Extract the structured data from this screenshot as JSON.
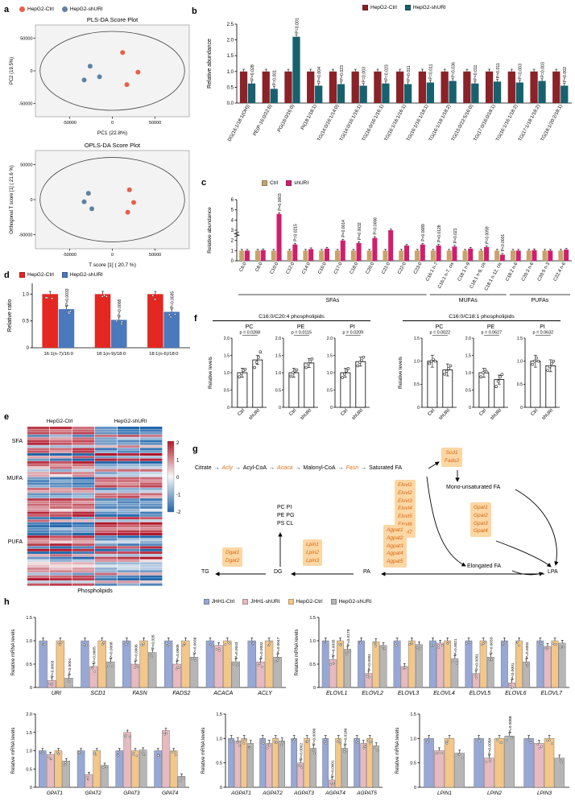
{
  "panels": {
    "a": "a",
    "b": "b",
    "c": "c",
    "d": "d",
    "e": "e",
    "f": "f",
    "g": "g",
    "h": "h"
  },
  "panel_a": {
    "legend": [
      {
        "label": "HepG2-Ctrl",
        "color": "#e8604c"
      },
      {
        "label": "HepG2-shURI",
        "color": "#5e82a0"
      }
    ],
    "plots": [
      {
        "title": "PLS-DA Score Plot",
        "xlabel": "PC1 (22.8%)",
        "ylabel": "PC2 (19.5%)",
        "xticks": [
          "-50000",
          "0",
          "50000"
        ],
        "yticks": [
          "50000",
          "0",
          "-50000"
        ],
        "xlim": [
          -90000,
          90000
        ],
        "ylim": [
          -70000,
          70000
        ],
        "ctrl": [
          [
            12000,
            28000
          ],
          [
            30000,
            -2000
          ],
          [
            17000,
            -21000
          ]
        ],
        "shuri": [
          [
            -26000,
            7000
          ],
          [
            -15000,
            -9000
          ],
          [
            -33000,
            -14000
          ]
        ]
      },
      {
        "title": "OPLS-DA Score Plot",
        "xlabel": "T score [1] ( 20.7 %)",
        "ylabel": "Orthogonal T score [1] ( 21.6 %)",
        "xticks": [
          "-50000",
          "0",
          "50000"
        ],
        "yticks": [
          "50000",
          "0",
          "-50000"
        ],
        "xlim": [
          -90000,
          90000
        ],
        "ylim": [
          -70000,
          70000
        ],
        "ctrl": [
          [
            20000,
            14000
          ],
          [
            25000,
            -4000
          ],
          [
            18000,
            -18000
          ]
        ],
        "shuri": [
          [
            -28000,
            9000
          ],
          [
            -33000,
            -3000
          ],
          [
            -24000,
            -13000
          ]
        ]
      }
    ]
  },
  "panel_b": {
    "legend": [
      {
        "label": "HepG2-Ctrl",
        "color": "#8a2227"
      },
      {
        "label": "HepG2-shURI",
        "color": "#17616e"
      }
    ],
    "ylabel": "Relative abundance",
    "ylim": 2.5,
    "yticks": [
      "0.0",
      "0.5",
      "1.0",
      "1.5",
      "2.0",
      "2.5"
    ],
    "categories": [
      "DG(16:1/18:1(OH))",
      "PE(P-16:0/22:6)",
      "PG(16:0/16:0)",
      "PI(18:1/18:1)",
      "TG(14:0/16:1/14:0)",
      "TG(14:0/16:1/16:1)",
      "TG(16:0/16:1/16:1)",
      "TG(16:1/16:1/16:1)",
      "TG(16:1/16:1/18:1)",
      "TG(16:1/18:1/18:2)",
      "TG(15:0/22:5/16:0)",
      "TG(17:0/16:0/18:1)",
      "TG(16:1/16:1/18:2)",
      "TG(17:1/18:1/18:2)",
      "TG(18:1/20:2/18:1)"
    ],
    "ctrl": [
      1,
      1,
      1,
      1,
      1,
      1,
      1,
      1,
      1,
      1,
      1,
      1,
      1,
      1,
      1
    ],
    "shuri": [
      0.62,
      0.45,
      2.1,
      0.55,
      0.6,
      0.55,
      0.62,
      0.6,
      0.65,
      0.7,
      0.62,
      0.68,
      0.65,
      0.7,
      0.55
    ],
    "pvals": [
      "P=0.028",
      "P=0.001",
      "P=0.001",
      "P=0.004",
      "P=0.023",
      "P=0.003",
      "P=0.023",
      "P=0.011",
      "P=0.011",
      "P=0.036",
      "P=0.011",
      "P=0.011",
      "P=0.003",
      "P=0.003",
      "P=0.002"
    ]
  },
  "panel_c": {
    "legend": [
      {
        "label": "Ctrl",
        "color": "#c7a26b"
      },
      {
        "label": "shURI",
        "color": "#cf1f6e"
      }
    ],
    "ylabel": "Relative abundance",
    "ylim": 6,
    "yticks": [
      "0",
      "1",
      "2",
      "3",
      "4",
      "5",
      "6"
    ],
    "categories": [
      "C6:0",
      "C8:0",
      "C10:0",
      "C12:0",
      "C14:0",
      "C16:0",
      "C17:0",
      "C18:0",
      "C20:0",
      "C21:0",
      "C22:0",
      "C23:0",
      "C16:1 n-7",
      "C16:1 n-7, cis",
      "C18:1 n-9",
      "C18:1 n-9, cis",
      "C18:1 n-12, cis",
      "C18:2 n-6",
      "C20:3 n-6",
      "C20:5 n-3",
      "C22:4 n-6"
    ],
    "ctrl": [
      1,
      1,
      1,
      1,
      1,
      1,
      1,
      1,
      1,
      1,
      1,
      1,
      1,
      1,
      1,
      1,
      1,
      1,
      1,
      1,
      1
    ],
    "shuri": [
      1.0,
      1.05,
      4.6,
      1.6,
      1.15,
      1.2,
      2.0,
      1.75,
      2.25,
      3.0,
      1.5,
      1.6,
      1.5,
      1.4,
      1.2,
      1.35,
      0.6,
      1.0,
      1.05,
      1.0,
      1.1
    ],
    "pvals": [
      {
        "c": 2,
        "t": "P=0.0003"
      },
      {
        "c": 3,
        "t": "P=0.0215"
      },
      {
        "c": 6,
        "t": "P=0.0014"
      },
      {
        "c": 7,
        "t": "P=0.0032"
      },
      {
        "c": 8,
        "t": "P=0.0006"
      },
      {
        "c": 11,
        "t": "P=0.0089"
      },
      {
        "c": 12,
        "t": "P=0.0128"
      },
      {
        "c": 13,
        "t": "P=0.021"
      },
      {
        "c": 15,
        "t": "P=0.0059"
      },
      {
        "c": 16,
        "t": "P<0.0001"
      }
    ],
    "groups": [
      {
        "label": "SFAs",
        "from": 0,
        "to": 11
      },
      {
        "label": "MUFAs",
        "from": 12,
        "to": 16
      },
      {
        "label": "PUFAs",
        "from": 17,
        "to": 20
      }
    ]
  },
  "panel_d": {
    "legend": [
      {
        "label": "HepG2-Ctrl",
        "color": "#e52721"
      },
      {
        "label": "HepG2-shURI",
        "color": "#4a79bd"
      }
    ],
    "ylabel": "Relative ratio",
    "ylim": 1.2,
    "yticks": [
      "0",
      "0.5",
      "1.0"
    ],
    "categories": [
      "16:1(n-7)/16:0",
      "18:1(n-9)/18:0",
      "18:1(n-6)/18:0"
    ],
    "ctrl": [
      1.0,
      1.0,
      1.0
    ],
    "shuri": [
      0.72,
      0.52,
      0.67
    ],
    "pvals": [
      "P=0.0033",
      "P=0.0008",
      "P=0.0035"
    ]
  },
  "panel_e": {
    "col_headers": [
      "HepG2-Ctrl",
      "HepG2-shURI"
    ],
    "row_groups": [
      {
        "label": "SFA",
        "rows": 12
      },
      {
        "label": "MUFA",
        "rows": 16
      },
      {
        "label": "PUFA",
        "rows": 32
      }
    ],
    "xlabel": "Phospholipids",
    "colorbar_ticks": [
      "2",
      "1",
      "0",
      "-1",
      "-2"
    ],
    "heat_pos": "#b2182b",
    "heat_neg": "#2166ac"
  },
  "panel_f": {
    "groups": [
      {
        "title": "C16:0/C20:4 phospholipids",
        "ylabel": "Relative levels",
        "xticklabels": [
          "Ctrl",
          "shURI"
        ],
        "plots": [
          {
            "name": "PC",
            "p": "p = 0.0268",
            "ylim": 2,
            "yticks": [
              "0",
              "0.5",
              "1.0",
              "1.5",
              "2.0"
            ],
            "ctrl": 1.0,
            "shuri": 1.37,
            "ctrl_pts": [
              0.88,
              0.97,
              1.06,
              1.1
            ],
            "shuri_pts": [
              1.15,
              1.3,
              1.45,
              1.6
            ]
          },
          {
            "name": "PE",
            "p": "p = 0.0115",
            "ylim": 2,
            "yticks": [
              "0",
              "0.5",
              "1.0",
              "1.5",
              "2.0"
            ],
            "ctrl": 1.0,
            "shuri": 1.28,
            "ctrl_pts": [
              0.9,
              1.0,
              1.05,
              1.08
            ],
            "shuri_pts": [
              1.15,
              1.25,
              1.32,
              1.4
            ]
          },
          {
            "name": "PI",
            "p": "p = 0.0209",
            "ylim": 2,
            "yticks": [
              "0",
              "0.5",
              "1.0",
              "1.5",
              "2.0"
            ],
            "ctrl": 1.0,
            "shuri": 1.32,
            "ctrl_pts": [
              0.86,
              0.96,
              1.05,
              1.12
            ],
            "shuri_pts": [
              1.2,
              1.3,
              1.36,
              1.45
            ]
          }
        ]
      },
      {
        "title": "C16:0/C18:1 phospholipids",
        "ylabel": "Relative levels",
        "xticklabels": [
          "Ctrl",
          "shURI"
        ],
        "plots": [
          {
            "name": "PC",
            "p": "p = 0.0022",
            "ylim": 1.5,
            "yticks": [
              "0",
              "0.5",
              "1.0",
              "1.5"
            ],
            "ctrl": 1.0,
            "shuri": 0.81,
            "ctrl_pts": [
              0.95,
              1.0,
              1.04,
              1.0
            ],
            "shuri_pts": [
              0.72,
              0.78,
              0.84,
              0.9
            ]
          },
          {
            "name": "PE",
            "p": "p = 0.0627",
            "ylim": 2,
            "yticks": [
              "0",
              "0.5",
              "1.0",
              "1.5",
              "2.0"
            ],
            "ctrl": 1.0,
            "shuri": 0.8,
            "ctrl_pts": [
              0.88,
              1.0,
              1.1,
              1.02
            ],
            "shuri_pts": [
              0.6,
              0.75,
              0.88,
              0.95
            ]
          },
          {
            "name": "PI",
            "p": "p = 0.0632",
            "ylim": 1.5,
            "yticks": [
              "0",
              "0.5",
              "1.0",
              "1.5"
            ],
            "ctrl": 1.0,
            "shuri": 0.9,
            "ctrl_pts": [
              0.93,
              1.0,
              1.07,
              1.0
            ],
            "shuri_pts": [
              0.8,
              0.88,
              0.95,
              1.0
            ]
          }
        ]
      }
    ]
  },
  "panel_g": {
    "arrow": "→",
    "metabolites": {
      "citrate": "Citrate",
      "acyl_coa": "Acyl-CoA",
      "malonyl_coa": "Malonyl-CoA",
      "saturated_fa": "Saturated FA",
      "mono_fa": "Mono-unsaturated FA",
      "elongated_fa": "Elongated FA",
      "lpa": "LPA",
      "pa": "PA",
      "dg": "DG",
      "tg": "TG"
    },
    "enzymes": {
      "acly": "Acly",
      "acaca": "Acaca",
      "fasn": "Fasn"
    },
    "boxes": {
      "scd": [
        "Scd1",
        "Fads2"
      ],
      "elovl": [
        "Elovl1",
        "Elovl2",
        "Elovl3",
        "Elovl4",
        "Elovl5",
        "Elovl6",
        "Elovl7"
      ],
      "gpat": [
        "Gpat1",
        "Gpat2",
        "Gpat3",
        "Gpat4"
      ],
      "agpat": [
        "Agpat1",
        "Agpat2",
        "Agpat3",
        "Agpat4",
        "Agpat5"
      ],
      "lpin": [
        "Lpin1",
        "Lpin2",
        "Lpin3"
      ],
      "dgat": [
        "Dgat1",
        "Dgat2"
      ]
    },
    "phospholipids": [
      "PC PI",
      "PE PG",
      "PS CL"
    ]
  },
  "panel_h": {
    "legend": [
      {
        "label": "JHH1-Ctrl",
        "color": "#97a8d6"
      },
      {
        "label": "JHH1-shURI",
        "color": "#e7b9c0"
      },
      {
        "label": "HepG2-Ctrl",
        "color": "#f3c689"
      },
      {
        "label": "HepG2-shURI",
        "color": "#b6b6b6"
      }
    ],
    "ylabel": "Relative mRNA levels",
    "charts": [
      {
        "categories": [
          "URI",
          "SCD1",
          "FASN",
          "FADS2",
          "ACACA",
          "ACLY"
        ],
        "ylim": 1.5,
        "yticks": [
          "0",
          "0.5",
          "1.0",
          "1.5"
        ],
        "values": [
          [
            1,
            0.15,
            1,
            0.2
          ],
          [
            1,
            0.45,
            1,
            0.55
          ],
          [
            1,
            0.5,
            1,
            0.75
          ],
          [
            1,
            0.5,
            1,
            0.65
          ],
          [
            1,
            0.9,
            1,
            0.55
          ],
          [
            1,
            0.55,
            1,
            0.65
          ]
        ],
        "pvals": [
          {
            "c": 0,
            "s": 1,
            "t": "P=0.0003"
          },
          {
            "c": 0,
            "s": 3,
            "t": "P<0.0001"
          },
          {
            "c": 1,
            "s": 1,
            "t": "P=0.0005"
          },
          {
            "c": 1,
            "s": 3,
            "t": "P=0.0008"
          },
          {
            "c": 2,
            "s": 1,
            "t": "P=0.0006"
          },
          {
            "c": 2,
            "s": 3,
            "t": "P=0.035"
          },
          {
            "c": 3,
            "s": 1,
            "t": "P=0.0005"
          },
          {
            "c": 3,
            "s": 3,
            "t": "P=0.0036"
          },
          {
            "c": 4,
            "s": 3,
            "t": "P=0.0043"
          },
          {
            "c": 5,
            "s": 1,
            "t": "P=0.0002"
          },
          {
            "c": 5,
            "s": 3,
            "t": "P=0.0047"
          }
        ]
      },
      {
        "categories": [
          "ELOVL1",
          "ELOVL2",
          "ELOVL3",
          "ELOVL4",
          "ELOVL5",
          "ELOVL6",
          "ELOVL7"
        ],
        "ylim": 1.5,
        "yticks": [
          "0",
          "0.5",
          "1.0",
          "1.5"
        ],
        "values": [
          [
            1,
            0.6,
            1,
            0.82
          ],
          [
            1,
            0.3,
            0.98,
            0.9
          ],
          [
            1,
            0.45,
            1,
            0.92
          ],
          [
            1,
            0.95,
            1,
            0.62
          ],
          [
            1,
            0.3,
            1,
            0.65
          ],
          [
            1,
            0.1,
            1,
            0.55
          ],
          [
            1,
            0.88,
            1,
            0.95
          ]
        ],
        "pvals": [
          {
            "c": 0,
            "s": 1,
            "t": "P=0.0035"
          },
          {
            "c": 0,
            "s": 3,
            "t": "P=0.0179"
          },
          {
            "c": 1,
            "s": 1,
            "t": "P<0.0001"
          },
          {
            "c": 3,
            "s": 3,
            "t": "P=0.0021"
          },
          {
            "c": 4,
            "s": 1,
            "t": "P<0.0001"
          },
          {
            "c": 4,
            "s": 3,
            "t": "P=0.0033"
          },
          {
            "c": 5,
            "s": 1,
            "t": "P<0.0001"
          },
          {
            "c": 5,
            "s": 3,
            "t": "P=0.0002"
          }
        ]
      },
      {
        "categories": [
          "GPAT1",
          "GPAT2",
          "GPAT3",
          "GPAT4"
        ],
        "ylim": 2,
        "yticks": [
          "0",
          "0.5",
          "1.0",
          "1.5",
          "2.0"
        ],
        "values": [
          [
            1,
            0.9,
            1,
            0.72
          ],
          [
            1,
            0.35,
            1,
            0.6
          ],
          [
            1,
            1.5,
            1,
            1.02
          ],
          [
            1,
            1.55,
            1,
            0.3
          ]
        ],
        "pvals": []
      },
      {
        "categories": [
          "AGPAT1",
          "AGPAT2",
          "AGPAT3",
          "AGPAT4",
          "AGPAT5"
        ],
        "ylim": 1.5,
        "yticks": [
          "0",
          "0.5",
          "1.0",
          "1.5"
        ],
        "values": [
          [
            1,
            0.95,
            1,
            0.9
          ],
          [
            1,
            0.9,
            1,
            0.95
          ],
          [
            1,
            0.5,
            1,
            0.8
          ],
          [
            1,
            0.15,
            1,
            0.8
          ],
          [
            1,
            0.9,
            1,
            0.85
          ]
        ],
        "pvals": [
          {
            "c": 2,
            "s": 1,
            "t": "P=0.0002"
          },
          {
            "c": 2,
            "s": 3,
            "t": "P=0.0009"
          },
          {
            "c": 3,
            "s": 1,
            "t": "P<0.0001"
          },
          {
            "c": 3,
            "s": 3,
            "t": "P=0.0189"
          }
        ]
      },
      {
        "categories": [
          "LPIN1",
          "LPIN2",
          "LPIN3"
        ],
        "ylim": 1.5,
        "yticks": [
          "0",
          "0.5",
          "1.0",
          "1.5"
        ],
        "values": [
          [
            1,
            0.75,
            1,
            0.7
          ],
          [
            1,
            0.6,
            1,
            1.05
          ],
          [
            1,
            0.9,
            1,
            0.6
          ]
        ],
        "pvals": [
          {
            "c": 1,
            "s": 1,
            "t": "P=0.0058"
          },
          {
            "c": 1,
            "s": 3,
            "t": "P=0.0088"
          }
        ]
      }
    ]
  }
}
